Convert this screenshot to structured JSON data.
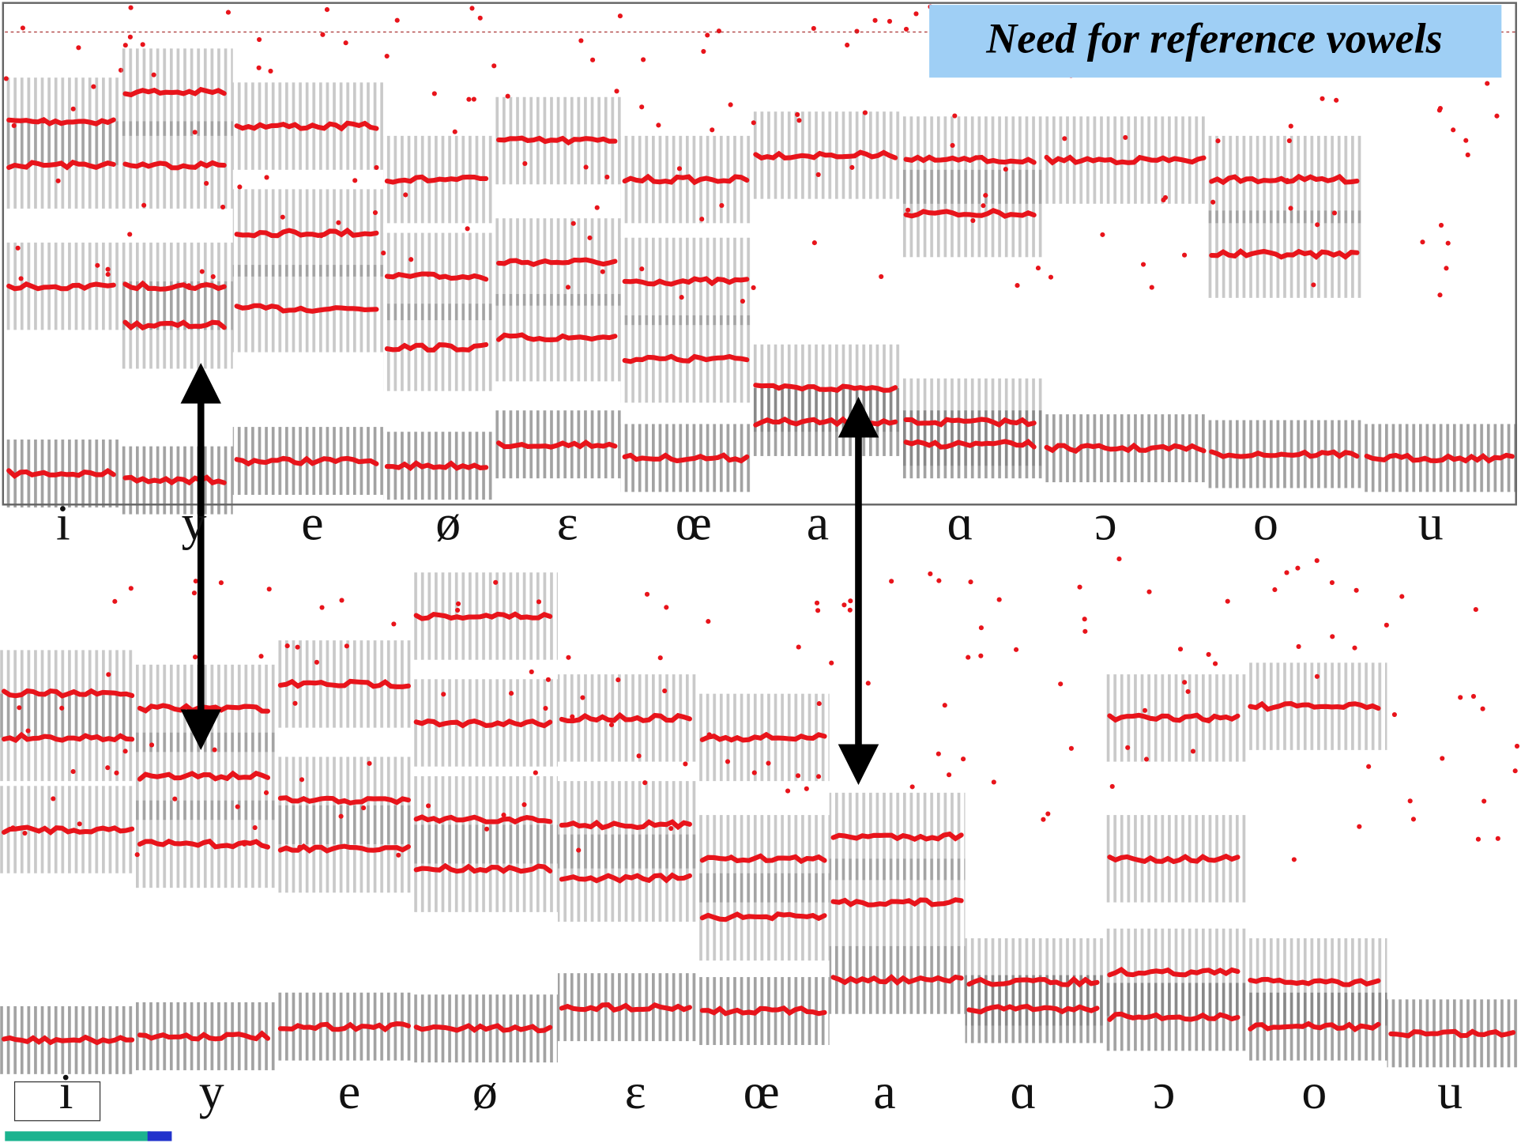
{
  "title": "Need for reference vowels",
  "top_labels": [
    "i",
    "y",
    "e",
    "ø",
    "ɛ",
    "œ",
    "a",
    "ɑ",
    "ɔ",
    "o",
    "u"
  ],
  "bottom_labels": [
    "i",
    "y",
    "e",
    "ø",
    "ɛ",
    "œ",
    "a",
    "ɑ",
    "ɔ",
    "o",
    "u"
  ]
}
